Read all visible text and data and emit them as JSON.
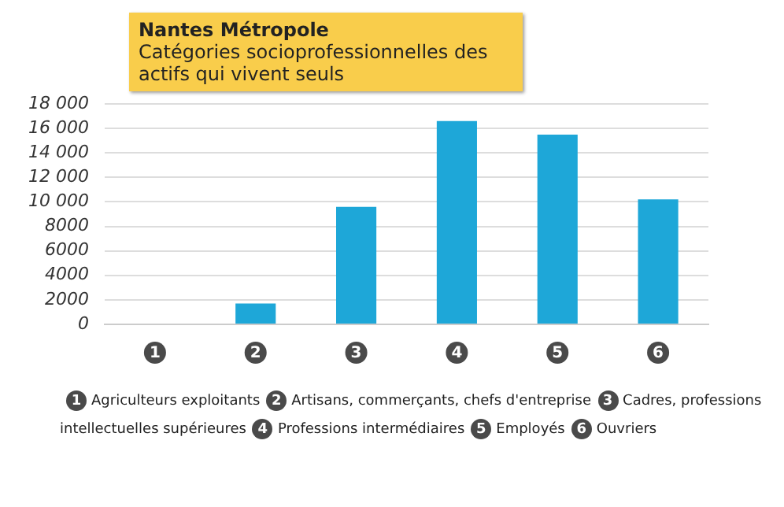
{
  "chart_data": {
    "type": "bar",
    "title": "Nantes Métropole",
    "subtitle": "Catégories socioprofessionnelles des actifs qui vivent seuls",
    "categories": [
      "1",
      "2",
      "3",
      "4",
      "5",
      "6"
    ],
    "values": [
      0,
      1700,
      9600,
      16600,
      15500,
      10200
    ],
    "color": "#1ea7d8",
    "ylim": [
      0,
      18000
    ],
    "yticks": [
      0,
      2000,
      4000,
      6000,
      8000,
      {
        "value": 10000,
        "label": "10 000"
      },
      {
        "value": 12000,
        "label": "12 000"
      },
      {
        "value": 14000,
        "label": "14 000"
      },
      {
        "value": 16000,
        "label": "16 000"
      },
      {
        "value": 18000,
        "label": "18 000"
      }
    ],
    "grid": "y",
    "annotations": [
      "Agriculteurs exploitants",
      "Artisans, commerçants, chefs d'entreprise",
      "Cadres, professions intellectuelles supérieures",
      "Professions intermédiaires",
      "Employés",
      "Ouvriers"
    ]
  }
}
